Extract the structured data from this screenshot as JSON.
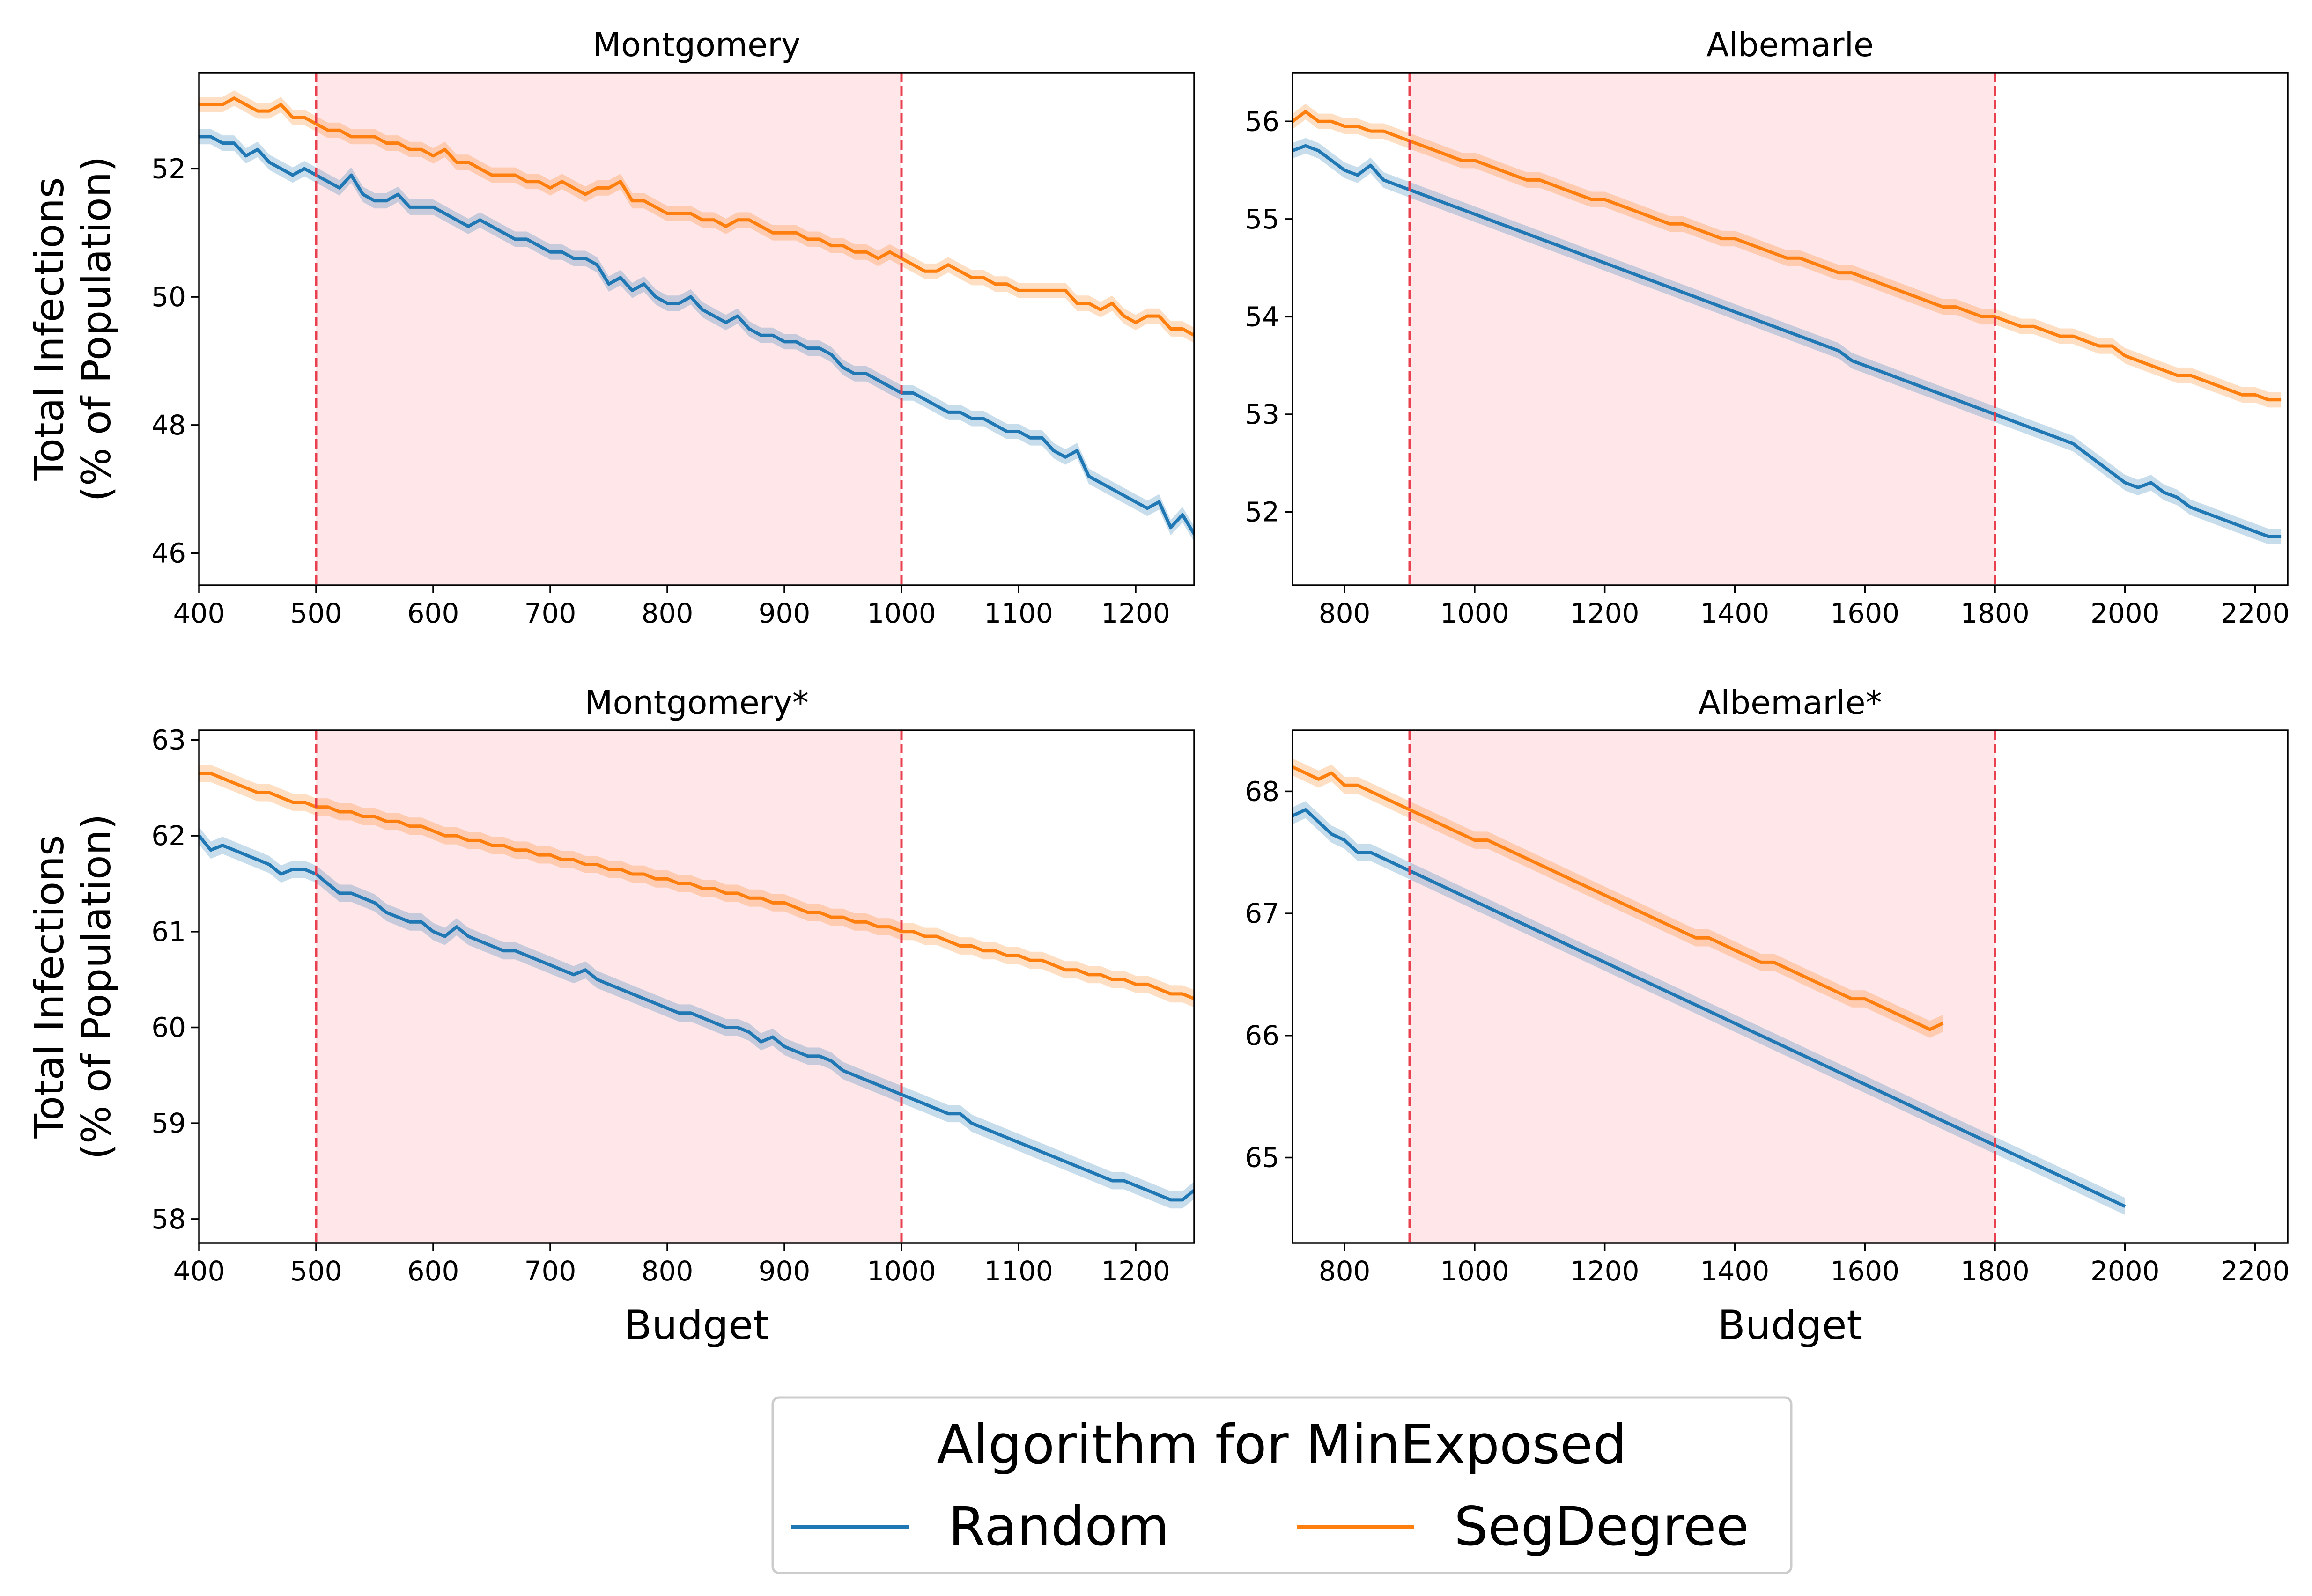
{
  "chart_data": [
    {
      "type": "line",
      "title": "Montgomery",
      "xlabel": "",
      "ylabel": "Total Infections\n(% of Population)",
      "xlim": [
        400,
        1250
      ],
      "ylim": [
        45.5,
        53.5
      ],
      "xticks": [
        400,
        500,
        600,
        700,
        800,
        900,
        1000,
        1100,
        1200
      ],
      "yticks": [
        46,
        48,
        50,
        52
      ],
      "highlight_range": [
        500,
        1000
      ],
      "x_start": 400,
      "x_step": 10,
      "series": [
        {
          "name": "Random",
          "color": "#1f77b4",
          "band": 0.12,
          "values": [
            52.5,
            52.5,
            52.4,
            52.4,
            52.2,
            52.3,
            52.1,
            52.0,
            51.9,
            52.0,
            51.9,
            51.8,
            51.7,
            51.9,
            51.6,
            51.5,
            51.5,
            51.6,
            51.4,
            51.4,
            51.4,
            51.3,
            51.2,
            51.1,
            51.2,
            51.1,
            51.0,
            50.9,
            50.9,
            50.8,
            50.7,
            50.7,
            50.6,
            50.6,
            50.5,
            50.2,
            50.3,
            50.1,
            50.2,
            50.0,
            49.9,
            49.9,
            50.0,
            49.8,
            49.7,
            49.6,
            49.7,
            49.5,
            49.4,
            49.4,
            49.3,
            49.3,
            49.2,
            49.2,
            49.1,
            48.9,
            48.8,
            48.8,
            48.7,
            48.6,
            48.5,
            48.5,
            48.4,
            48.3,
            48.2,
            48.2,
            48.1,
            48.1,
            48.0,
            47.9,
            47.9,
            47.8,
            47.8,
            47.6,
            47.5,
            47.6,
            47.2,
            47.1,
            47.0,
            46.9,
            46.8,
            46.7,
            46.8,
            46.4,
            46.6,
            46.3,
            46.4,
            46.1
          ]
        },
        {
          "name": "SegDegree",
          "color": "#ff7f0e",
          "band": 0.12,
          "values": [
            53.0,
            53.0,
            53.0,
            53.1,
            53.0,
            52.9,
            52.9,
            53.0,
            52.8,
            52.8,
            52.7,
            52.6,
            52.6,
            52.5,
            52.5,
            52.5,
            52.4,
            52.4,
            52.3,
            52.3,
            52.2,
            52.3,
            52.1,
            52.1,
            52.0,
            51.9,
            51.9,
            51.9,
            51.8,
            51.8,
            51.7,
            51.8,
            51.7,
            51.6,
            51.7,
            51.7,
            51.8,
            51.5,
            51.5,
            51.4,
            51.3,
            51.3,
            51.3,
            51.2,
            51.2,
            51.1,
            51.2,
            51.2,
            51.1,
            51.0,
            51.0,
            51.0,
            50.9,
            50.9,
            50.8,
            50.8,
            50.7,
            50.7,
            50.6,
            50.7,
            50.6,
            50.5,
            50.4,
            50.4,
            50.5,
            50.4,
            50.3,
            50.3,
            50.2,
            50.2,
            50.1,
            50.1,
            50.1,
            50.1,
            50.1,
            49.9,
            49.9,
            49.8,
            49.9,
            49.7,
            49.6,
            49.7,
            49.7,
            49.5,
            49.5,
            49.4,
            49.4,
            49.3
          ]
        }
      ]
    },
    {
      "type": "line",
      "title": "Albemarle",
      "xlabel": "",
      "ylabel": "",
      "xlim": [
        720,
        2250
      ],
      "ylim": [
        51.25,
        56.5
      ],
      "xticks": [
        800,
        1000,
        1200,
        1400,
        1600,
        1800,
        2000,
        2200
      ],
      "yticks": [
        52,
        53,
        54,
        55,
        56
      ],
      "highlight_range": [
        900,
        1800
      ],
      "x_start": 720,
      "x_step": 20,
      "series": [
        {
          "name": "Random",
          "color": "#1f77b4",
          "band": 0.08,
          "values": [
            55.7,
            55.75,
            55.7,
            55.6,
            55.5,
            55.45,
            55.55,
            55.4,
            55.35,
            55.3,
            55.25,
            55.2,
            55.15,
            55.1,
            55.05,
            55.0,
            54.95,
            54.9,
            54.85,
            54.8,
            54.75,
            54.7,
            54.65,
            54.6,
            54.55,
            54.5,
            54.45,
            54.4,
            54.35,
            54.3,
            54.25,
            54.2,
            54.15,
            54.1,
            54.05,
            54.0,
            53.95,
            53.9,
            53.85,
            53.8,
            53.75,
            53.7,
            53.65,
            53.55,
            53.5,
            53.45,
            53.4,
            53.35,
            53.3,
            53.25,
            53.2,
            53.15,
            53.1,
            53.05,
            53.0,
            52.95,
            52.9,
            52.85,
            52.8,
            52.75,
            52.7,
            52.6,
            52.5,
            52.4,
            52.3,
            52.25,
            52.3,
            52.2,
            52.15,
            52.05,
            52.0,
            51.95,
            51.9,
            51.85,
            51.8,
            51.75,
            51.75
          ]
        },
        {
          "name": "SegDegree",
          "color": "#ff7f0e",
          "band": 0.08,
          "values": [
            56.0,
            56.1,
            56.0,
            56.0,
            55.95,
            55.95,
            55.9,
            55.9,
            55.85,
            55.8,
            55.75,
            55.7,
            55.65,
            55.6,
            55.6,
            55.55,
            55.5,
            55.45,
            55.4,
            55.4,
            55.35,
            55.3,
            55.25,
            55.2,
            55.2,
            55.15,
            55.1,
            55.05,
            55.0,
            54.95,
            54.95,
            54.9,
            54.85,
            54.8,
            54.8,
            54.75,
            54.7,
            54.65,
            54.6,
            54.6,
            54.55,
            54.5,
            54.45,
            54.45,
            54.4,
            54.35,
            54.3,
            54.25,
            54.2,
            54.15,
            54.1,
            54.1,
            54.05,
            54.0,
            54.0,
            53.95,
            53.9,
            53.9,
            53.85,
            53.8,
            53.8,
            53.75,
            53.7,
            53.7,
            53.6,
            53.55,
            53.5,
            53.45,
            53.4,
            53.4,
            53.35,
            53.3,
            53.25,
            53.2,
            53.2,
            53.15,
            53.15
          ]
        }
      ]
    },
    {
      "type": "line",
      "title": "Montgomery*",
      "xlabel": "Budget",
      "ylabel": "Total Infections\n(% of Population)",
      "xlim": [
        400,
        1250
      ],
      "ylim": [
        57.75,
        63.1
      ],
      "xticks": [
        400,
        500,
        600,
        700,
        800,
        900,
        1000,
        1100,
        1200
      ],
      "yticks": [
        58,
        59,
        60,
        61,
        62,
        63
      ],
      "highlight_range": [
        500,
        1000
      ],
      "x_start": 400,
      "x_step": 10,
      "series": [
        {
          "name": "Random",
          "color": "#1f77b4",
          "band": 0.09,
          "values": [
            62.0,
            61.85,
            61.9,
            61.85,
            61.8,
            61.75,
            61.7,
            61.6,
            61.65,
            61.65,
            61.6,
            61.5,
            61.4,
            61.4,
            61.35,
            61.3,
            61.2,
            61.15,
            61.1,
            61.1,
            61.0,
            60.95,
            61.05,
            60.95,
            60.9,
            60.85,
            60.8,
            60.8,
            60.75,
            60.7,
            60.65,
            60.6,
            60.55,
            60.6,
            60.5,
            60.45,
            60.4,
            60.35,
            60.3,
            60.25,
            60.2,
            60.15,
            60.15,
            60.1,
            60.05,
            60.0,
            60.0,
            59.95,
            59.85,
            59.9,
            59.8,
            59.75,
            59.7,
            59.7,
            59.65,
            59.55,
            59.5,
            59.45,
            59.4,
            59.35,
            59.3,
            59.25,
            59.2,
            59.15,
            59.1,
            59.1,
            59.0,
            58.95,
            58.9,
            58.85,
            58.8,
            58.75,
            58.7,
            58.65,
            58.6,
            58.55,
            58.5,
            58.45,
            58.4,
            58.4,
            58.35,
            58.3,
            58.25,
            58.2,
            58.2,
            58.3,
            58.1,
            58.1
          ]
        },
        {
          "name": "SegDegree",
          "color": "#ff7f0e",
          "band": 0.09,
          "values": [
            62.65,
            62.65,
            62.6,
            62.55,
            62.5,
            62.45,
            62.45,
            62.4,
            62.35,
            62.35,
            62.3,
            62.3,
            62.25,
            62.25,
            62.2,
            62.2,
            62.15,
            62.15,
            62.1,
            62.1,
            62.05,
            62.0,
            62.0,
            61.95,
            61.95,
            61.9,
            61.9,
            61.85,
            61.85,
            61.8,
            61.8,
            61.75,
            61.75,
            61.7,
            61.7,
            61.65,
            61.65,
            61.6,
            61.6,
            61.55,
            61.55,
            61.5,
            61.5,
            61.45,
            61.45,
            61.4,
            61.4,
            61.35,
            61.35,
            61.3,
            61.3,
            61.25,
            61.2,
            61.2,
            61.15,
            61.15,
            61.1,
            61.1,
            61.05,
            61.05,
            61.0,
            61.0,
            60.95,
            60.95,
            60.9,
            60.85,
            60.85,
            60.8,
            60.8,
            60.75,
            60.75,
            60.7,
            60.7,
            60.65,
            60.6,
            60.6,
            60.55,
            60.55,
            60.5,
            60.5,
            60.45,
            60.45,
            60.4,
            60.35,
            60.35,
            60.3,
            60.3,
            60.25
          ]
        }
      ]
    },
    {
      "type": "line",
      "title": "Albemarle*",
      "xlabel": "Budget",
      "ylabel": "",
      "xlim": [
        720,
        2250
      ],
      "ylim": [
        64.3,
        68.5
      ],
      "xticks": [
        800,
        1000,
        1200,
        1400,
        1600,
        1800,
        2000,
        2200
      ],
      "yticks": [
        65,
        66,
        67,
        68
      ],
      "highlight_range": [
        900,
        1800
      ],
      "x_start": 720,
      "x_step": 20,
      "series": [
        {
          "name": "Random",
          "color": "#1f77b4",
          "band": 0.07,
          "values": [
            67.8,
            67.85,
            67.75,
            67.65,
            67.6,
            67.5,
            67.5,
            67.45,
            67.4,
            67.35,
            67.3,
            67.25,
            67.2,
            67.15,
            67.1,
            67.05,
            67.0,
            66.95,
            66.9,
            66.85,
            66.8,
            66.75,
            66.7,
            66.65,
            66.6,
            66.55,
            66.5,
            66.45,
            66.4,
            66.35,
            66.3,
            66.25,
            66.2,
            66.15,
            66.1,
            66.05,
            66.0,
            65.95,
            65.9,
            65.85,
            65.8,
            65.75,
            65.7,
            65.65,
            65.6,
            65.55,
            65.5,
            65.45,
            65.4,
            65.35,
            65.3,
            65.25,
            65.2,
            65.15,
            65.1,
            65.05,
            65.0,
            64.95,
            64.9,
            64.85,
            64.8,
            64.75,
            64.7,
            64.65,
            64.6
          ]
        },
        {
          "name": "SegDegree",
          "color": "#ff7f0e",
          "band": 0.07,
          "values": [
            68.2,
            68.15,
            68.1,
            68.15,
            68.05,
            68.05,
            68.0,
            67.95,
            67.9,
            67.85,
            67.8,
            67.75,
            67.7,
            67.65,
            67.6,
            67.6,
            67.55,
            67.5,
            67.45,
            67.4,
            67.35,
            67.3,
            67.25,
            67.2,
            67.15,
            67.1,
            67.05,
            67.0,
            66.95,
            66.9,
            66.85,
            66.8,
            66.8,
            66.75,
            66.7,
            66.65,
            66.6,
            66.6,
            66.55,
            66.5,
            66.45,
            66.4,
            66.35,
            66.3,
            66.3,
            66.25,
            66.2,
            66.15,
            66.1,
            66.05,
            66.1
          ]
        }
      ]
    }
  ],
  "legend": {
    "title": "Algorithm for MinExposed",
    "items": [
      {
        "label": "Random",
        "color": "#1f77b4"
      },
      {
        "label": "SegDegree",
        "color": "#ff7f0e"
      }
    ]
  },
  "colors": {
    "highlight_fill": "#ffe6e8",
    "highlight_line": "#e8404f"
  }
}
